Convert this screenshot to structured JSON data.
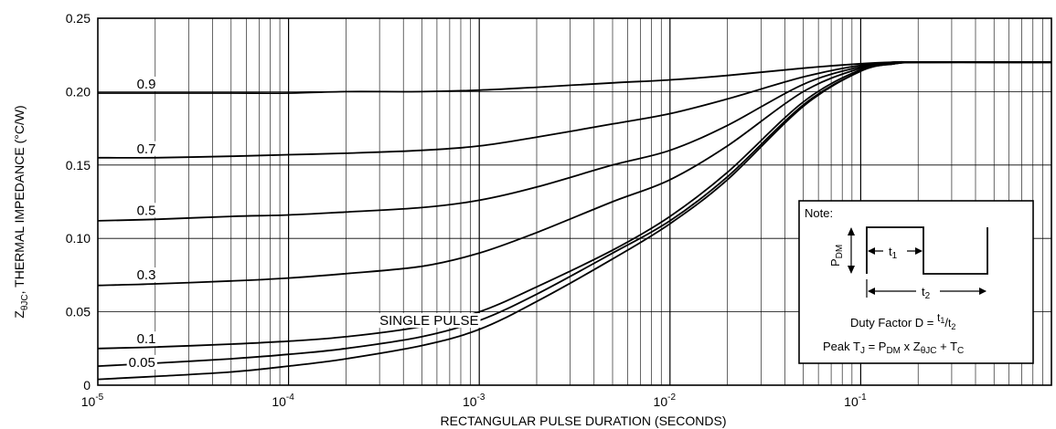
{
  "chart_data": {
    "type": "line",
    "xlabel": "RECTANGULAR PULSE DURATION (SECONDS)",
    "ylabel": "ZθJC, THERMAL IMPEDANCE (°C/W)",
    "xscale": "log",
    "xlim": [
      1e-05,
      1
    ],
    "ylim": [
      0,
      0.25
    ],
    "grid": true,
    "x_ticks": [
      {
        "value": 1e-05,
        "base": "10",
        "exp": "-5"
      },
      {
        "value": 0.0001,
        "base": "10",
        "exp": "-4"
      },
      {
        "value": 0.001,
        "base": "10",
        "exp": "-3"
      },
      {
        "value": 0.01,
        "base": "10",
        "exp": "-2"
      },
      {
        "value": 0.1,
        "base": "10",
        "exp": "-1"
      }
    ],
    "y_ticks": [
      {
        "value": 0,
        "label": "0"
      },
      {
        "value": 0.05,
        "label": "0.05"
      },
      {
        "value": 0.1,
        "label": "0.10"
      },
      {
        "value": 0.15,
        "label": "0.15"
      },
      {
        "value": 0.2,
        "label": "0.20"
      },
      {
        "value": 0.25,
        "label": "0.25"
      }
    ],
    "x": [
      1e-05,
      2e-05,
      5e-05,
      0.0001,
      0.0002,
      0.0005,
      0.001,
      0.002,
      0.005,
      0.01,
      0.02,
      0.05,
      0.1,
      0.15,
      0.2,
      0.5,
      1
    ],
    "series": [
      {
        "name": "0.9",
        "values": [
          0.199,
          0.199,
          0.199,
          0.199,
          0.2,
          0.2,
          0.201,
          0.203,
          0.206,
          0.208,
          0.211,
          0.216,
          0.219,
          0.22,
          0.22,
          0.22,
          0.22
        ]
      },
      {
        "name": "0.7",
        "values": [
          0.155,
          0.155,
          0.156,
          0.157,
          0.158,
          0.16,
          0.163,
          0.169,
          0.178,
          0.185,
          0.195,
          0.21,
          0.218,
          0.22,
          0.22,
          0.22,
          0.22
        ]
      },
      {
        "name": "0.5",
        "values": [
          0.112,
          0.113,
          0.115,
          0.116,
          0.118,
          0.121,
          0.126,
          0.135,
          0.15,
          0.16,
          0.177,
          0.205,
          0.217,
          0.22,
          0.22,
          0.22,
          0.22
        ]
      },
      {
        "name": "0.3",
        "values": [
          0.068,
          0.069,
          0.071,
          0.073,
          0.076,
          0.081,
          0.09,
          0.104,
          0.125,
          0.14,
          0.163,
          0.2,
          0.216,
          0.22,
          0.22,
          0.22,
          0.22
        ]
      },
      {
        "name": "0.1",
        "values": [
          0.025,
          0.026,
          0.028,
          0.03,
          0.033,
          0.04,
          0.05,
          0.067,
          0.092,
          0.115,
          0.145,
          0.193,
          0.215,
          0.219,
          0.22,
          0.22,
          0.22
        ]
      },
      {
        "name": "0.05",
        "values": [
          0.013,
          0.015,
          0.018,
          0.021,
          0.025,
          0.033,
          0.044,
          0.062,
          0.09,
          0.112,
          0.142,
          0.191,
          0.214,
          0.219,
          0.22,
          0.22,
          0.22
        ]
      },
      {
        "name": "SINGLE PULSE",
        "values": [
          0.004,
          0.006,
          0.009,
          0.013,
          0.018,
          0.027,
          0.038,
          0.057,
          0.086,
          0.11,
          0.14,
          0.19,
          0.214,
          0.219,
          0.22,
          0.22,
          0.22
        ]
      }
    ],
    "note": {
      "title": "Note:",
      "pdm_label": "P",
      "pdm_sub": "DM",
      "t1_label": "t",
      "t1_sub": "1",
      "t2_label": "t",
      "t2_sub": "2",
      "duty_text": "Duty Factor  D = ",
      "duty_t1": "t",
      "duty_t1_sub": "1",
      "duty_slash": "/",
      "duty_t2": "t",
      "duty_t2_sub": "2",
      "peak_text": "Peak T",
      "peak_tj_sub": "J",
      "peak_eq": " = P",
      "peak_pdm_sub": "DM",
      "peak_x": " x Z",
      "peak_z_sub": "θJC",
      "peak_plus": " + T",
      "peak_tc_sub": "C"
    },
    "ylabel_parts": {
      "main": "Z",
      "sub": "θJC",
      "rest": ", THERMAL IMPEDANCE (°C/W)"
    }
  }
}
